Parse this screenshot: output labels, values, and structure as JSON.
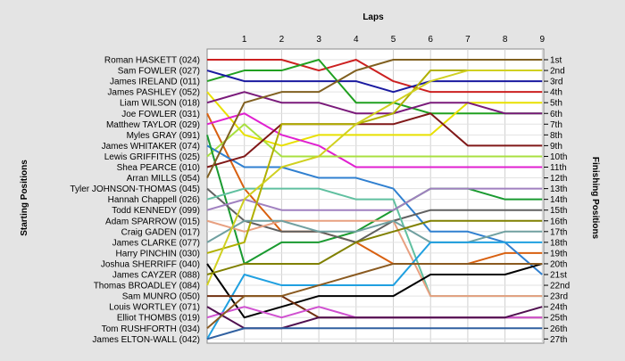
{
  "chart_data": {
    "type": "line",
    "title": "",
    "xlabel": "Laps",
    "ylabel_left": "Starting Positions",
    "ylabel_right": "Finishing Positions",
    "x": [
      0,
      1,
      2,
      3,
      4,
      5,
      6,
      7,
      8,
      9
    ],
    "x_tick_labels": [
      "1",
      "2",
      "3",
      "4",
      "5",
      "6",
      "7",
      "8",
      "9"
    ],
    "ylim": [
      1,
      27
    ],
    "grid": true,
    "start_labels": [
      "Roman HASKETT (024)",
      "Sam FOWLER (027)",
      "James IRELAND (011)",
      "James PASHLEY (052)",
      "Liam WILSON (018)",
      "Joe FOWLER (031)",
      "Matthew TAYLOR (029)",
      "Myles GRAY (091)",
      "James WHITAKER (074)",
      "Lewis GRIFFITHS (025)",
      "Shea PEARCE (010)",
      "Arran MILLS (054)",
      "Tyler JOHNSON-THOMAS (045)",
      "Hannah Chappell (026)",
      "Todd KENNEDY (099)",
      "Adam SPARROW (015)",
      "Craig GADEN (017)",
      "James CLARKE (077)",
      "Harry PINCHIN (030)",
      "Joshua SHERRIFF (040)",
      "James CAYZER (088)",
      "Thomas BROADLEY (084)",
      "Sam MUNRO (050)",
      "Louis WORTLEY (071)",
      "Elliot THOMBS (019)",
      "Tom RUSHFORTH (034)",
      "James ELTON-WALL (042)"
    ],
    "finish_labels": [
      "1st",
      "2nd",
      "3rd",
      "4th",
      "5th",
      "6th",
      "7th",
      "8th",
      "9th",
      "10th",
      "11th",
      "12th",
      "13th",
      "14th",
      "15th",
      "16th",
      "17th",
      "18th",
      "19th",
      "20th",
      "21st",
      "22nd",
      "23rd",
      "24th",
      "25th",
      "26th",
      "27th"
    ],
    "series": [
      {
        "color": "#cc2020",
        "positions": [
          1,
          1,
          1,
          2,
          1,
          3,
          4,
          4,
          4,
          4
        ]
      },
      {
        "color": "#20a020",
        "positions": [
          3,
          2,
          2,
          1,
          5,
          5,
          6,
          6,
          6,
          6
        ]
      },
      {
        "color": "#1a1aa0",
        "positions": [
          2,
          3,
          3,
          3,
          3,
          4,
          3,
          3,
          3,
          3
        ]
      },
      {
        "color": "#e8e000",
        "positions": [
          4,
          8,
          9,
          8,
          8,
          8,
          8,
          5,
          5,
          5
        ]
      },
      {
        "color": "#7a1a7a",
        "positions": [
          5,
          4,
          5,
          5,
          6,
          6,
          5,
          5,
          6,
          6
        ]
      },
      {
        "color": "#d86010",
        "positions": [
          6,
          13,
          17,
          17,
          18,
          20,
          20,
          20,
          19,
          19
        ]
      },
      {
        "color": "#e020d0",
        "positions": [
          7,
          6,
          8,
          9,
          11,
          11,
          11,
          11,
          11,
          11
        ]
      },
      {
        "color": "#a8e040",
        "positions": [
          10,
          7,
          10,
          10,
          10,
          10,
          10,
          10,
          10,
          10
        ]
      },
      {
        "color": "#3080d0",
        "positions": [
          9,
          11,
          11,
          12,
          12,
          13,
          17,
          17,
          18,
          21
        ]
      },
      {
        "color": "#1a9a30",
        "positions": [
          8,
          20,
          18,
          18,
          17,
          15,
          13,
          13,
          14,
          14
        ]
      },
      {
        "color": "#801818",
        "positions": [
          11,
          10,
          7,
          7,
          7,
          7,
          6,
          9,
          9,
          9
        ]
      },
      {
        "color": "#806020",
        "positions": [
          12,
          5,
          4,
          4,
          2,
          1,
          1,
          1,
          1,
          1
        ]
      },
      {
        "color": "#606060",
        "positions": [
          13,
          16,
          17,
          17,
          18,
          16,
          15,
          15,
          15,
          15
        ]
      },
      {
        "color": "#60c0a0",
        "positions": [
          14,
          13,
          13,
          13,
          14,
          14,
          23,
          23,
          23,
          23
        ]
      },
      {
        "color": "#a080c0",
        "positions": [
          15,
          14,
          15,
          15,
          15,
          15,
          13,
          13,
          13,
          13
        ]
      },
      {
        "color": "#e8a080",
        "positions": [
          16,
          17,
          16,
          16,
          16,
          16,
          23,
          23,
          23,
          23
        ]
      },
      {
        "color": "#b0b000",
        "positions": [
          19,
          18,
          7,
          7,
          7,
          6,
          2,
          2,
          2,
          2
        ]
      },
      {
        "color": "#70a0a0",
        "positions": [
          18,
          16,
          16,
          17,
          17,
          16,
          18,
          18,
          17,
          17
        ]
      },
      {
        "color": "#d0d020",
        "positions": [
          22,
          14,
          11,
          10,
          7,
          5,
          3,
          2,
          2,
          2
        ]
      },
      {
        "color": "#000000",
        "positions": [
          20,
          25,
          24,
          23,
          23,
          23,
          21,
          21,
          21,
          20
        ]
      },
      {
        "color": "#808000",
        "positions": [
          21,
          20,
          20,
          20,
          18,
          17,
          16,
          16,
          16,
          16
        ]
      },
      {
        "color": "#20a0e0",
        "positions": [
          27,
          21,
          22,
          22,
          22,
          22,
          18,
          18,
          18,
          18
        ]
      },
      {
        "color": "#703010",
        "positions": [
          23,
          23,
          23,
          25,
          25,
          25,
          25,
          25,
          25,
          25
        ]
      },
      {
        "color": "#d050d0",
        "positions": [
          25,
          24,
          25,
          24,
          25,
          25,
          25,
          25,
          25,
          25
        ]
      },
      {
        "color": "#501050",
        "positions": [
          24,
          26,
          26,
          25,
          25,
          25,
          25,
          25,
          25,
          24
        ]
      },
      {
        "color": "#8a5a20",
        "positions": [
          26,
          23,
          23,
          22,
          21,
          20,
          20,
          20,
          20,
          20
        ]
      },
      {
        "color": "#3060a0",
        "positions": [
          27,
          26,
          26,
          26,
          26,
          26,
          26,
          26,
          26,
          26
        ]
      }
    ]
  }
}
